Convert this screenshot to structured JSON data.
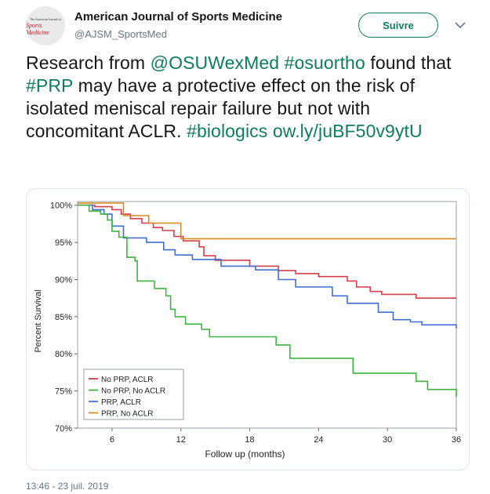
{
  "account": {
    "name": "American Journal of Sports Medicine",
    "handle": "@AJSM_SportsMed",
    "avatar_line1": "The American Journal of",
    "avatar_line2": "Sports Medicine"
  },
  "follow_label": "Suivre",
  "tweet": {
    "segments": [
      {
        "text": "Research from ",
        "link": false
      },
      {
        "text": "@OSUWexMed",
        "link": true
      },
      {
        "text": " ",
        "link": false
      },
      {
        "text": "#osuortho",
        "link": true
      },
      {
        "text": " found that ",
        "link": false
      },
      {
        "text": "#PRP",
        "link": true
      },
      {
        "text": " may have a protective effect on the risk of isolated meniscal repair failure but not with concomitant ACLR. ",
        "link": false
      },
      {
        "text": "#biologics",
        "link": true
      },
      {
        "text": " ",
        "link": false
      },
      {
        "text": "ow.ly/juBF50v9ytU",
        "link": true
      }
    ]
  },
  "timestamp": "13:46 - 23 juil. 2019",
  "colors": {
    "accent": "#0f7c5a",
    "no_prp_aclr": "#d23f4b",
    "no_prp_no_aclr": "#3fb33f",
    "prp_aclr": "#3f6fd1",
    "prp_no_aclr": "#d98a1f"
  },
  "icons": {
    "dropdown": "chevron-down-icon"
  },
  "chart_data": {
    "type": "line",
    "step": true,
    "title": "",
    "xlabel": "Follow up (months)",
    "ylabel": "Percent Survival",
    "xlim": [
      3,
      36
    ],
    "ylim": [
      70,
      100.5
    ],
    "xticks": [
      6,
      12,
      18,
      24,
      30,
      36
    ],
    "yticks": [
      70,
      75,
      80,
      85,
      90,
      95,
      100
    ],
    "ytick_labels": [
      "70%",
      "75%",
      "80%",
      "85%",
      "90%",
      "95%",
      "100%"
    ],
    "legend_position": "bottom-left",
    "grid": false,
    "series": [
      {
        "name": "No PRP, ACLR",
        "color": "#d23f4b",
        "points": [
          [
            3,
            100
          ],
          [
            4.5,
            100
          ],
          [
            4.5,
            99.8
          ],
          [
            6,
            99.8
          ],
          [
            6,
            99.4
          ],
          [
            6.8,
            99.4
          ],
          [
            6.8,
            98.8
          ],
          [
            7.6,
            98.8
          ],
          [
            7.6,
            98.2
          ],
          [
            8.6,
            98.2
          ],
          [
            8.6,
            97.6
          ],
          [
            9.6,
            97.6
          ],
          [
            9.6,
            97
          ],
          [
            10.4,
            97
          ],
          [
            10.4,
            96.6
          ],
          [
            11.4,
            96.6
          ],
          [
            11.4,
            95.8
          ],
          [
            12.2,
            95.8
          ],
          [
            12.2,
            95.2
          ],
          [
            13.6,
            95.2
          ],
          [
            13.6,
            94.4
          ],
          [
            14,
            94.4
          ],
          [
            14,
            93.2
          ],
          [
            15,
            93.2
          ],
          [
            15,
            92.6
          ],
          [
            18,
            92.6
          ],
          [
            18,
            91.8
          ],
          [
            20.5,
            91.8
          ],
          [
            20.5,
            91.2
          ],
          [
            22,
            91.2
          ],
          [
            22,
            90.8
          ],
          [
            24,
            90.8
          ],
          [
            24,
            90.4
          ],
          [
            26.5,
            90.4
          ],
          [
            26.5,
            89.8
          ],
          [
            27.3,
            89.8
          ],
          [
            27.3,
            89
          ],
          [
            28.5,
            89
          ],
          [
            28.5,
            88.4
          ],
          [
            29.5,
            88.4
          ],
          [
            29.5,
            88
          ],
          [
            32.5,
            88
          ],
          [
            32.5,
            87.5
          ],
          [
            36,
            87.5
          ]
        ]
      },
      {
        "name": "PRP, No ACLR",
        "color": "#d98a1f",
        "points": [
          [
            3,
            100.3
          ],
          [
            7,
            100.3
          ],
          [
            7,
            98.6
          ],
          [
            9.2,
            98.6
          ],
          [
            9.2,
            97.6
          ],
          [
            12,
            97.6
          ],
          [
            12,
            95.5
          ],
          [
            36,
            95.5
          ]
        ]
      },
      {
        "name": "PRP, ACLR",
        "color": "#3f6fd1",
        "points": [
          [
            3,
            100
          ],
          [
            4.3,
            100
          ],
          [
            4.3,
            99.4
          ],
          [
            5.3,
            99.4
          ],
          [
            5.3,
            98.8
          ],
          [
            6,
            98.8
          ],
          [
            6,
            97.2
          ],
          [
            7,
            97.2
          ],
          [
            7,
            95.6
          ],
          [
            9,
            95.6
          ],
          [
            9,
            95
          ],
          [
            10.5,
            95
          ],
          [
            10.5,
            94
          ],
          [
            11.5,
            94
          ],
          [
            11.5,
            93.3
          ],
          [
            13,
            93.3
          ],
          [
            13,
            92.7
          ],
          [
            15.5,
            92.7
          ],
          [
            15.5,
            91.8
          ],
          [
            18.5,
            91.8
          ],
          [
            18.5,
            91.3
          ],
          [
            20.5,
            91.3
          ],
          [
            20.5,
            90
          ],
          [
            22,
            90
          ],
          [
            22,
            89
          ],
          [
            25.2,
            89
          ],
          [
            25.2,
            87.8
          ],
          [
            26.5,
            87.8
          ],
          [
            26.5,
            86.8
          ],
          [
            29.2,
            86.8
          ],
          [
            29.2,
            85.6
          ],
          [
            30.5,
            85.6
          ],
          [
            30.5,
            84.6
          ],
          [
            32,
            84.6
          ],
          [
            32,
            84.3
          ],
          [
            33,
            84.3
          ],
          [
            33,
            83.9
          ],
          [
            36,
            83.9
          ],
          [
            36,
            83.4
          ]
        ]
      },
      {
        "name": "PRP, No ACLR",
        "legend_label": "PRP, No ACLR",
        "hidden_duplicate": true
      },
      {
        "name": "No PRP, No ACLR",
        "color": "#3fb33f",
        "points": [
          [
            3,
            100
          ],
          [
            4,
            100
          ],
          [
            4,
            99.2
          ],
          [
            5,
            99.2
          ],
          [
            5,
            98.8
          ],
          [
            5.6,
            98.8
          ],
          [
            5.6,
            98
          ],
          [
            6,
            98
          ],
          [
            6,
            96.5
          ],
          [
            6.6,
            96.5
          ],
          [
            6.6,
            95.7
          ],
          [
            7.3,
            95.7
          ],
          [
            7.3,
            93
          ],
          [
            8,
            93
          ],
          [
            8,
            92.5
          ],
          [
            8.2,
            92.5
          ],
          [
            8.2,
            89.8
          ],
          [
            9.7,
            89.8
          ],
          [
            9.7,
            88.8
          ],
          [
            10.7,
            88.8
          ],
          [
            10.7,
            87.8
          ],
          [
            11.1,
            87.8
          ],
          [
            11.1,
            86
          ],
          [
            11.5,
            86
          ],
          [
            11.5,
            85
          ],
          [
            12.4,
            85
          ],
          [
            12.4,
            84
          ],
          [
            13.8,
            84
          ],
          [
            13.8,
            83.3
          ],
          [
            14.5,
            83.3
          ],
          [
            14.5,
            82.3
          ],
          [
            20.3,
            82.3
          ],
          [
            20.3,
            81.2
          ],
          [
            21.5,
            81.2
          ],
          [
            21.5,
            79.4
          ],
          [
            27,
            79.4
          ],
          [
            27,
            77.4
          ],
          [
            32.5,
            77.4
          ],
          [
            32.5,
            76.3
          ],
          [
            33.5,
            76.3
          ],
          [
            33.5,
            75.2
          ],
          [
            36,
            75.2
          ],
          [
            36,
            74.2
          ]
        ]
      }
    ],
    "legend": [
      "No PRP, ACLR",
      "No PRP, No ACLR",
      "PRP, ACLR",
      "PRP, No ACLR"
    ]
  }
}
